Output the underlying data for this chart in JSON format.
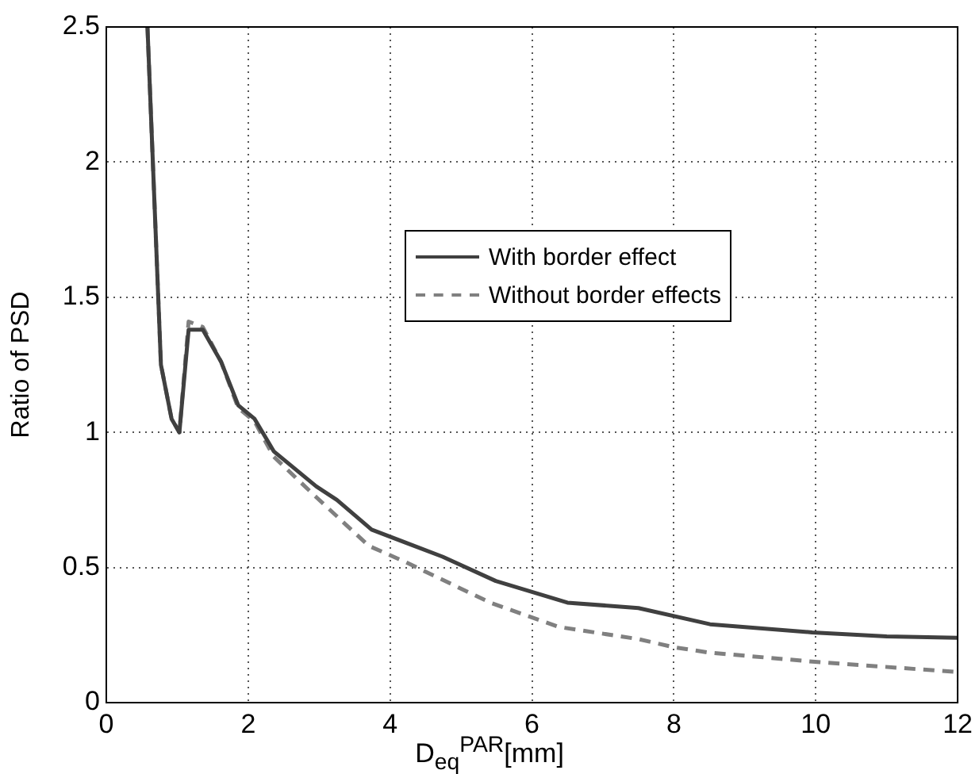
{
  "chart_data": {
    "type": "line",
    "xlabel": "D$_{eq}$$^{PAR}$[mm]",
    "ylabel": "Ratio of PSD",
    "xlim": [
      0,
      12
    ],
    "xticks": [
      0,
      2,
      4,
      6,
      8,
      10,
      12
    ],
    "ylim": [
      0,
      2.5
    ],
    "yticks": [
      0,
      0.5,
      1,
      1.5,
      2,
      2.5
    ],
    "grid": true,
    "legend": "right",
    "marker": "none",
    "series": [
      {
        "name": "With border effect",
        "color": "#404040",
        "line_style": "solid",
        "x": [
          0.58,
          0.77,
          0.92,
          1.03,
          1.16,
          1.36,
          1.62,
          1.86,
          2.09,
          2.36,
          2.96,
          3.25,
          3.74,
          4.74,
          5.49,
          6.5,
          7.5,
          8.51,
          9.95,
          11.0,
          12
        ],
        "values": [
          2.5,
          1.25,
          1.05,
          1.0,
          1.38,
          1.38,
          1.26,
          1.1,
          1.05,
          0.93,
          0.8,
          0.75,
          0.64,
          0.54,
          0.45,
          0.37,
          0.35,
          0.29,
          0.26,
          0.245,
          0.24
        ]
      },
      {
        "name": "Without border effects",
        "color": "#808080",
        "line_style": "dashed",
        "x": [
          0.58,
          0.77,
          0.92,
          1.03,
          1.16,
          1.36,
          1.62,
          1.86,
          2.09,
          2.36,
          2.96,
          3.7,
          4.22,
          5.41,
          6.38,
          7.5,
          8.0,
          8.5,
          9.95,
          12
        ],
        "values": [
          2.5,
          1.25,
          1.05,
          1.0,
          1.41,
          1.39,
          1.26,
          1.09,
          1.04,
          0.91,
          0.76,
          0.58,
          0.52,
          0.37,
          0.28,
          0.235,
          0.205,
          0.185,
          0.152,
          0.113
        ]
      }
    ]
  }
}
